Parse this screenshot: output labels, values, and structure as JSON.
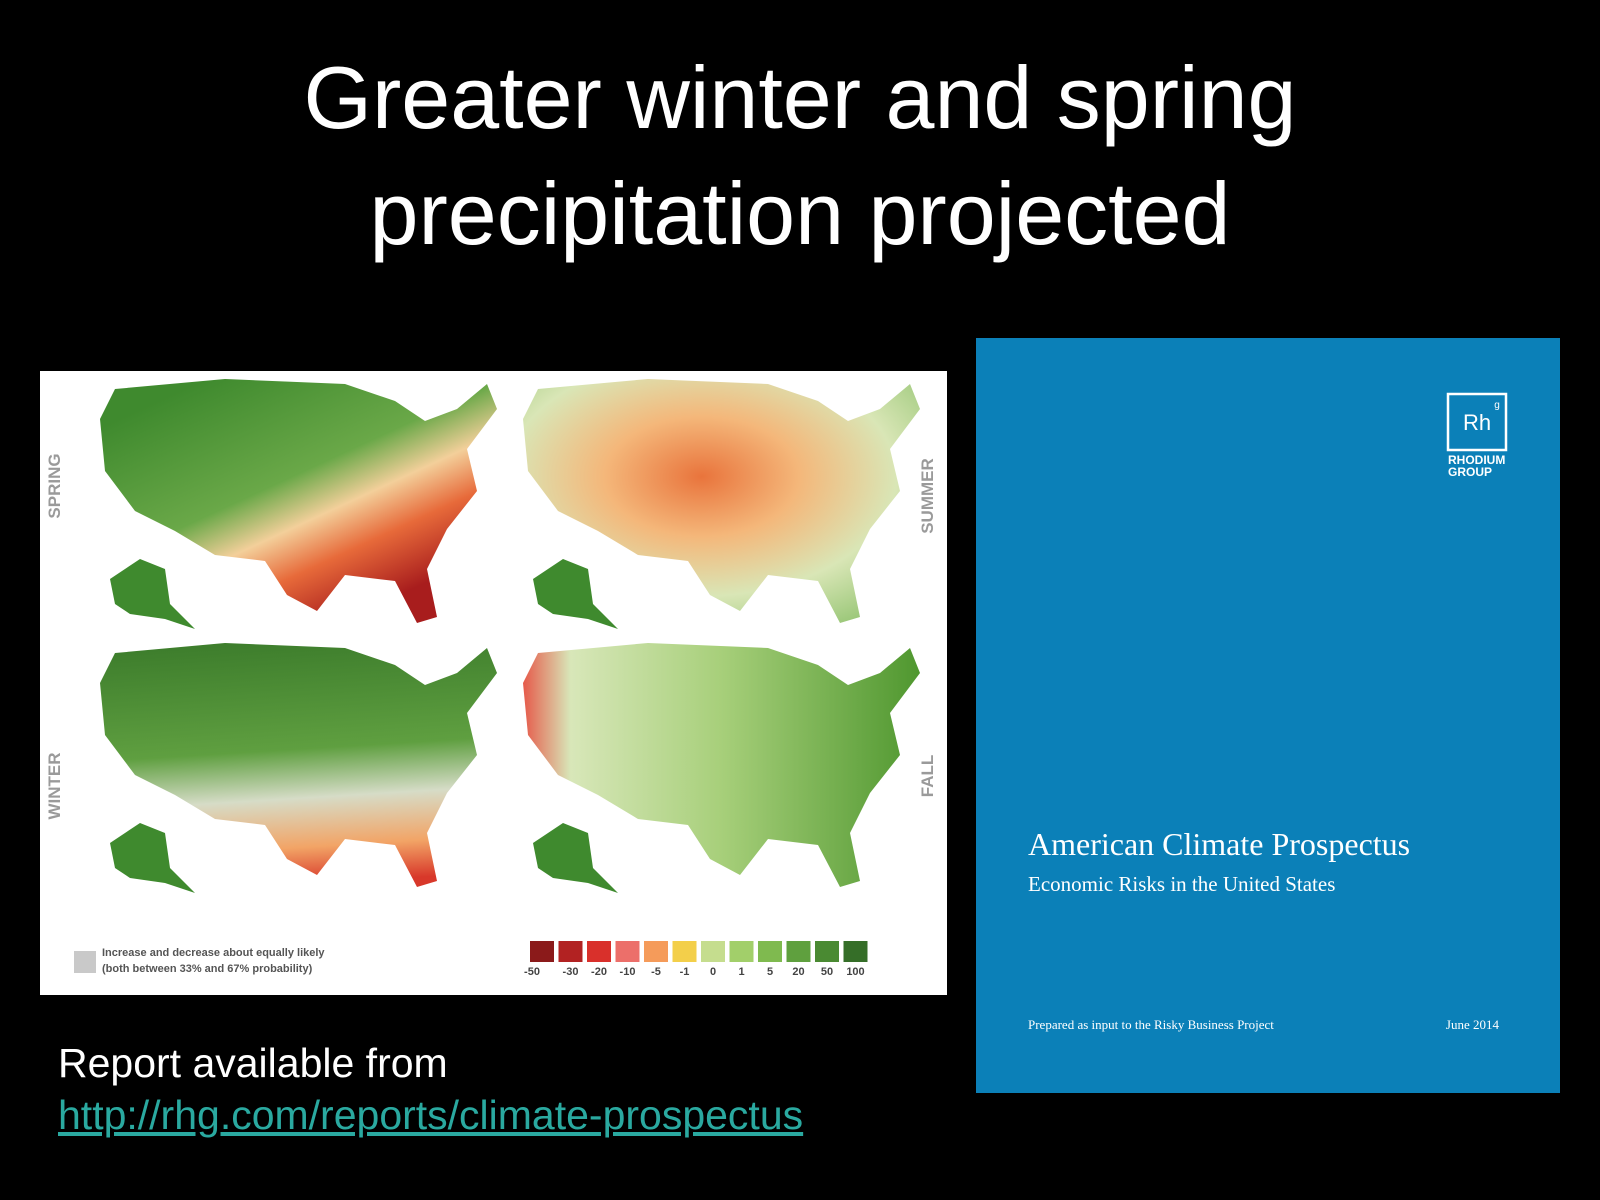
{
  "title": "Greater winter and spring precipitation projected",
  "figure": {
    "seasons": [
      "SPRING",
      "SUMMER",
      "WINTER",
      "FALL"
    ],
    "legend_note": [
      "Increase and decrease about equally likely",
      "(both between 33% and 67% probability)"
    ],
    "scale": {
      "labels": [
        "-50",
        "-30",
        "-20",
        "-10",
        "-5",
        "-1",
        "0",
        "1",
        "5",
        "20",
        "50",
        "100"
      ],
      "colors": [
        "#8b1a1a",
        "#b22222",
        "#d9302b",
        "#ec6f6a",
        "#f59b5a",
        "#f3cf4a",
        "#c5dd8e",
        "#a2cf6a",
        "#7fba4f",
        "#5fa03e",
        "#4a8a32",
        "#356e28"
      ]
    }
  },
  "cover": {
    "logo": "Rh",
    "logo_superscript": "g",
    "brand": [
      "RHODIUM",
      "GROUP"
    ],
    "title": "American Climate Prospectus",
    "subtitle": "Economic Risks in the United States",
    "note": "Prepared as input to the Risky Business Project",
    "date": "June 2014"
  },
  "footer": {
    "text": "Report available from",
    "link": "http://rhg.com/reports/climate-prospectus"
  }
}
